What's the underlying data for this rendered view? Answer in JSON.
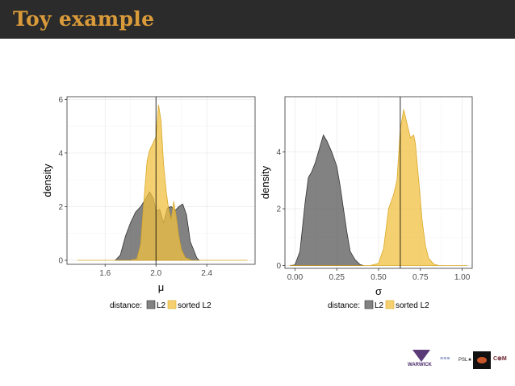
{
  "slide": {
    "title": "Toy example"
  },
  "colors": {
    "title_bar": "#2b2b2b",
    "title_text": "#d99a3a",
    "l2_fill": "#4d4d4d",
    "sorted_l2_fill": "#f0c040",
    "reference_line": "#000000"
  },
  "chart_data": [
    {
      "type": "area",
      "kind": "density",
      "xlabel": "μ",
      "ylabel": "density",
      "xlim": [
        1.3,
        2.78
      ],
      "ylim": [
        -0.15,
        6.1
      ],
      "xticks": [
        1.6,
        2.0,
        2.4
      ],
      "xtick_labels": [
        "1.6",
        "2.0",
        "2.4"
      ],
      "yticks": [
        0,
        2,
        4,
        6
      ],
      "ytick_labels": [
        "0",
        "2",
        "4",
        "6"
      ],
      "vline": 2.0,
      "grid": true,
      "legend": {
        "title": "distance:",
        "position": "bottom",
        "entries": [
          "L2",
          "sorted L2"
        ]
      },
      "series": [
        {
          "name": "L2",
          "color": "#4d4d4d",
          "opacity": 0.7,
          "points": [
            [
              1.68,
              0
            ],
            [
              1.72,
              0.2
            ],
            [
              1.76,
              0.9
            ],
            [
              1.8,
              1.4
            ],
            [
              1.84,
              1.8
            ],
            [
              1.88,
              2.0
            ],
            [
              1.92,
              2.3
            ],
            [
              1.95,
              2.55
            ],
            [
              1.98,
              2.3
            ],
            [
              2.0,
              1.85
            ],
            [
              2.03,
              1.9
            ],
            [
              2.06,
              1.4
            ],
            [
              2.09,
              1.95
            ],
            [
              2.12,
              2.0
            ],
            [
              2.15,
              1.85
            ],
            [
              2.18,
              2.0
            ],
            [
              2.21,
              2.1
            ],
            [
              2.24,
              1.7
            ],
            [
              2.27,
              0.7
            ],
            [
              2.3,
              0.35
            ],
            [
              2.32,
              0.1
            ],
            [
              2.34,
              0
            ]
          ]
        },
        {
          "name": "sorted L2",
          "color": "#f0c040",
          "opacity": 0.75,
          "points": [
            [
              1.38,
              0
            ],
            [
              1.8,
              0
            ],
            [
              1.85,
              0.05
            ],
            [
              1.88,
              0.6
            ],
            [
              1.91,
              2.5
            ],
            [
              1.93,
              3.7
            ],
            [
              1.95,
              4.1
            ],
            [
              1.98,
              4.4
            ],
            [
              2.0,
              4.6
            ],
            [
              2.02,
              5.8
            ],
            [
              2.04,
              5.2
            ],
            [
              2.06,
              3.6
            ],
            [
              2.08,
              2.6
            ],
            [
              2.1,
              1.9
            ],
            [
              2.12,
              1.5
            ],
            [
              2.14,
              2.2
            ],
            [
              2.16,
              1.6
            ],
            [
              2.18,
              0.9
            ],
            [
              2.2,
              0.4
            ],
            [
              2.23,
              0.1
            ],
            [
              2.28,
              0
            ],
            [
              2.72,
              0
            ]
          ]
        }
      ]
    },
    {
      "type": "area",
      "kind": "density",
      "xlabel": "σ",
      "ylabel": "density",
      "xlim": [
        -0.06,
        1.06
      ],
      "ylim": [
        -0.1,
        5.95
      ],
      "xticks": [
        0.0,
        0.25,
        0.5,
        0.75,
        1.0
      ],
      "xtick_labels": [
        "0.00",
        "0.25",
        "0.50",
        "0.75",
        "1.00"
      ],
      "yticks": [
        0,
        2,
        4
      ],
      "ytick_labels": [
        "0",
        "2",
        "4"
      ],
      "vline": 0.63,
      "grid": true,
      "legend": {
        "title": "distance:",
        "position": "bottom",
        "entries": [
          "L2",
          "sorted L2"
        ]
      },
      "series": [
        {
          "name": "L2",
          "color": "#4d4d4d",
          "opacity": 0.7,
          "points": [
            [
              -0.03,
              0
            ],
            [
              0.0,
              0.02
            ],
            [
              0.03,
              0.5
            ],
            [
              0.06,
              2.2
            ],
            [
              0.08,
              3.1
            ],
            [
              0.1,
              3.3
            ],
            [
              0.12,
              3.6
            ],
            [
              0.15,
              4.2
            ],
            [
              0.17,
              4.6
            ],
            [
              0.19,
              4.4
            ],
            [
              0.22,
              4.0
            ],
            [
              0.25,
              3.5
            ],
            [
              0.27,
              2.8
            ],
            [
              0.29,
              2.0
            ],
            [
              0.31,
              1.2
            ],
            [
              0.33,
              0.5
            ],
            [
              0.36,
              0.2
            ],
            [
              0.39,
              0.03
            ],
            [
              0.41,
              0
            ]
          ]
        },
        {
          "name": "sorted L2",
          "color": "#f0c040",
          "opacity": 0.75,
          "points": [
            [
              -0.03,
              0
            ],
            [
              0.45,
              0
            ],
            [
              0.5,
              0.08
            ],
            [
              0.53,
              0.6
            ],
            [
              0.56,
              2.0
            ],
            [
              0.59,
              2.5
            ],
            [
              0.61,
              3.0
            ],
            [
              0.63,
              4.8
            ],
            [
              0.65,
              5.5
            ],
            [
              0.67,
              5.0
            ],
            [
              0.69,
              4.5
            ],
            [
              0.71,
              4.6
            ],
            [
              0.72,
              4.3
            ],
            [
              0.74,
              3.0
            ],
            [
              0.76,
              1.6
            ],
            [
              0.78,
              0.7
            ],
            [
              0.8,
              0.25
            ],
            [
              0.83,
              0.05
            ],
            [
              0.86,
              0
            ],
            [
              1.03,
              0
            ]
          ]
        }
      ]
    }
  ]
}
